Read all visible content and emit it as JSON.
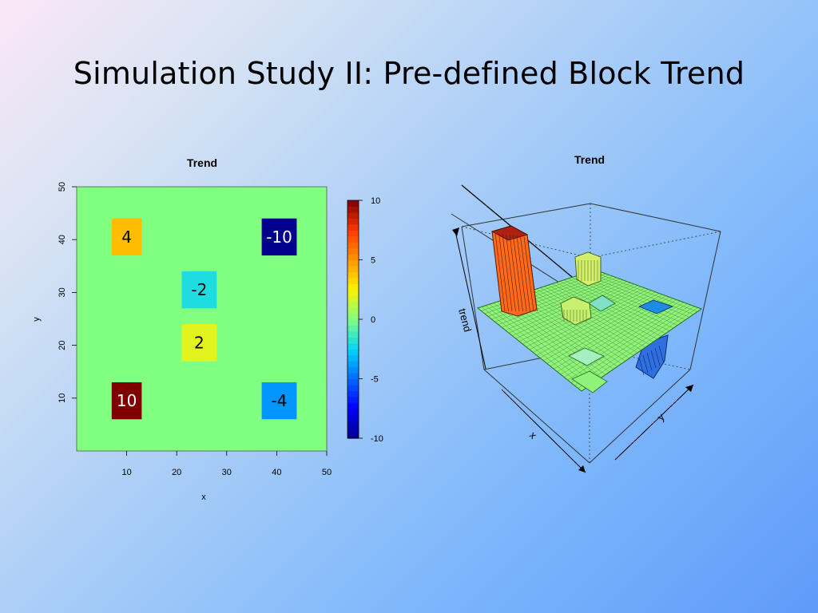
{
  "slide": {
    "title": "Simulation Study II: Pre-defined Block Trend"
  },
  "chart_data": [
    {
      "type": "heatmap",
      "title": "Trend",
      "xlabel": "x",
      "ylabel": "y",
      "xlim": [
        0,
        50
      ],
      "ylim": [
        0,
        50
      ],
      "x_ticks": [
        10,
        20,
        30,
        40,
        50
      ],
      "y_ticks": [
        10,
        20,
        30,
        40,
        50
      ],
      "background_value": 0,
      "blocks": [
        {
          "label": "4",
          "value": 4,
          "x": [
            7,
            13
          ],
          "y": [
            37,
            44
          ]
        },
        {
          "label": "-10",
          "value": -10,
          "x": [
            37,
            44
          ],
          "y": [
            37,
            44
          ]
        },
        {
          "label": "-2",
          "value": -2,
          "x": [
            21,
            28
          ],
          "y": [
            27,
            34
          ]
        },
        {
          "label": "2",
          "value": 2,
          "x": [
            21,
            28
          ],
          "y": [
            17,
            24
          ]
        },
        {
          "label": "10",
          "value": 10,
          "x": [
            7,
            13
          ],
          "y": [
            6,
            13
          ]
        },
        {
          "label": "-4",
          "value": -4,
          "x": [
            37,
            44
          ],
          "y": [
            6,
            13
          ]
        }
      ],
      "colorbar": {
        "min": -10,
        "max": 10,
        "ticks": [
          10,
          5,
          0,
          -5,
          -10
        ]
      }
    },
    {
      "type": "surface",
      "title": "Trend",
      "axis_labels": {
        "x": "x",
        "y": "y",
        "z": "trend"
      }
    }
  ]
}
